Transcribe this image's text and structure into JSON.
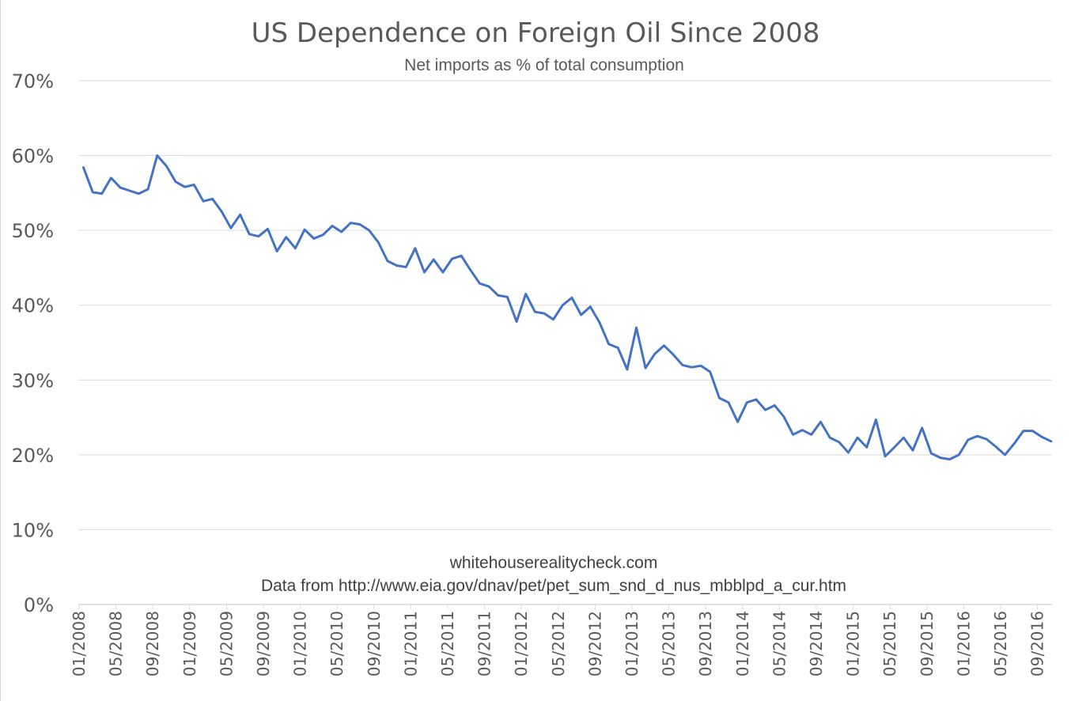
{
  "chart_data": {
    "type": "line",
    "title": "US Dependence on Foreign Oil Since 2008",
    "subtitle": "Net imports as % of total consumption",
    "xlabel": "",
    "ylabel": "",
    "ylim": [
      0,
      70
    ],
    "yticks": [
      "0%",
      "10%",
      "20%",
      "30%",
      "40%",
      "50%",
      "60%",
      "70%"
    ],
    "x_tick_labels": [
      "01/2008",
      "05/2008",
      "09/2008",
      "01/2009",
      "05/2009",
      "09/2009",
      "01/2010",
      "05/2010",
      "09/2010",
      "01/2011",
      "05/2011",
      "09/2011",
      "01/2012",
      "05/2012",
      "09/2012",
      "01/2013",
      "05/2013",
      "09/2013",
      "01/2014",
      "05/2014",
      "09/2014",
      "01/2015",
      "05/2015",
      "09/2015",
      "01/2016",
      "05/2016",
      "09/2016"
    ],
    "grid": true,
    "line_color": "#4472c4",
    "annotations": [
      "whitehouserealitycheck.com",
      "Data from http://www.eia.gov/dnav/pet/pet_sum_snd_d_nus_mbblpd_a_cur.htm"
    ],
    "series": [
      {
        "x_start": "01/2008",
        "frequency": "monthly",
        "values": [
          58.4,
          55.1,
          54.9,
          57.0,
          55.7,
          55.3,
          54.9,
          55.5,
          60.0,
          58.6,
          56.5,
          55.8,
          56.1,
          53.9,
          54.2,
          52.5,
          50.3,
          52.1,
          49.5,
          49.2,
          50.2,
          47.2,
          49.1,
          47.6,
          50.1,
          48.9,
          49.4,
          50.6,
          49.8,
          51.0,
          50.8,
          50.0,
          48.4,
          45.9,
          45.3,
          45.1,
          47.6,
          44.4,
          46.1,
          44.4,
          46.2,
          46.6,
          44.7,
          42.9,
          42.5,
          41.3,
          41.1,
          37.8,
          41.5,
          39.1,
          38.9,
          38.1,
          40.0,
          41.0,
          38.7,
          39.8,
          37.7,
          34.8,
          34.3,
          31.4,
          37.0,
          31.6,
          33.5,
          34.6,
          33.4,
          32.0,
          31.7,
          31.9,
          31.1,
          27.6,
          27.0,
          24.4,
          27.0,
          27.4,
          26.0,
          26.6,
          25.1,
          22.7,
          23.3,
          22.7,
          24.4,
          22.3,
          21.7,
          20.3,
          22.3,
          21.0,
          24.7,
          19.8,
          21.0,
          22.3,
          20.6,
          23.6,
          20.2,
          19.6,
          19.4,
          20.0,
          22.0,
          22.5,
          22.1,
          21.1,
          20.0,
          21.5,
          23.2,
          23.2,
          22.4,
          21.8
        ]
      }
    ]
  }
}
